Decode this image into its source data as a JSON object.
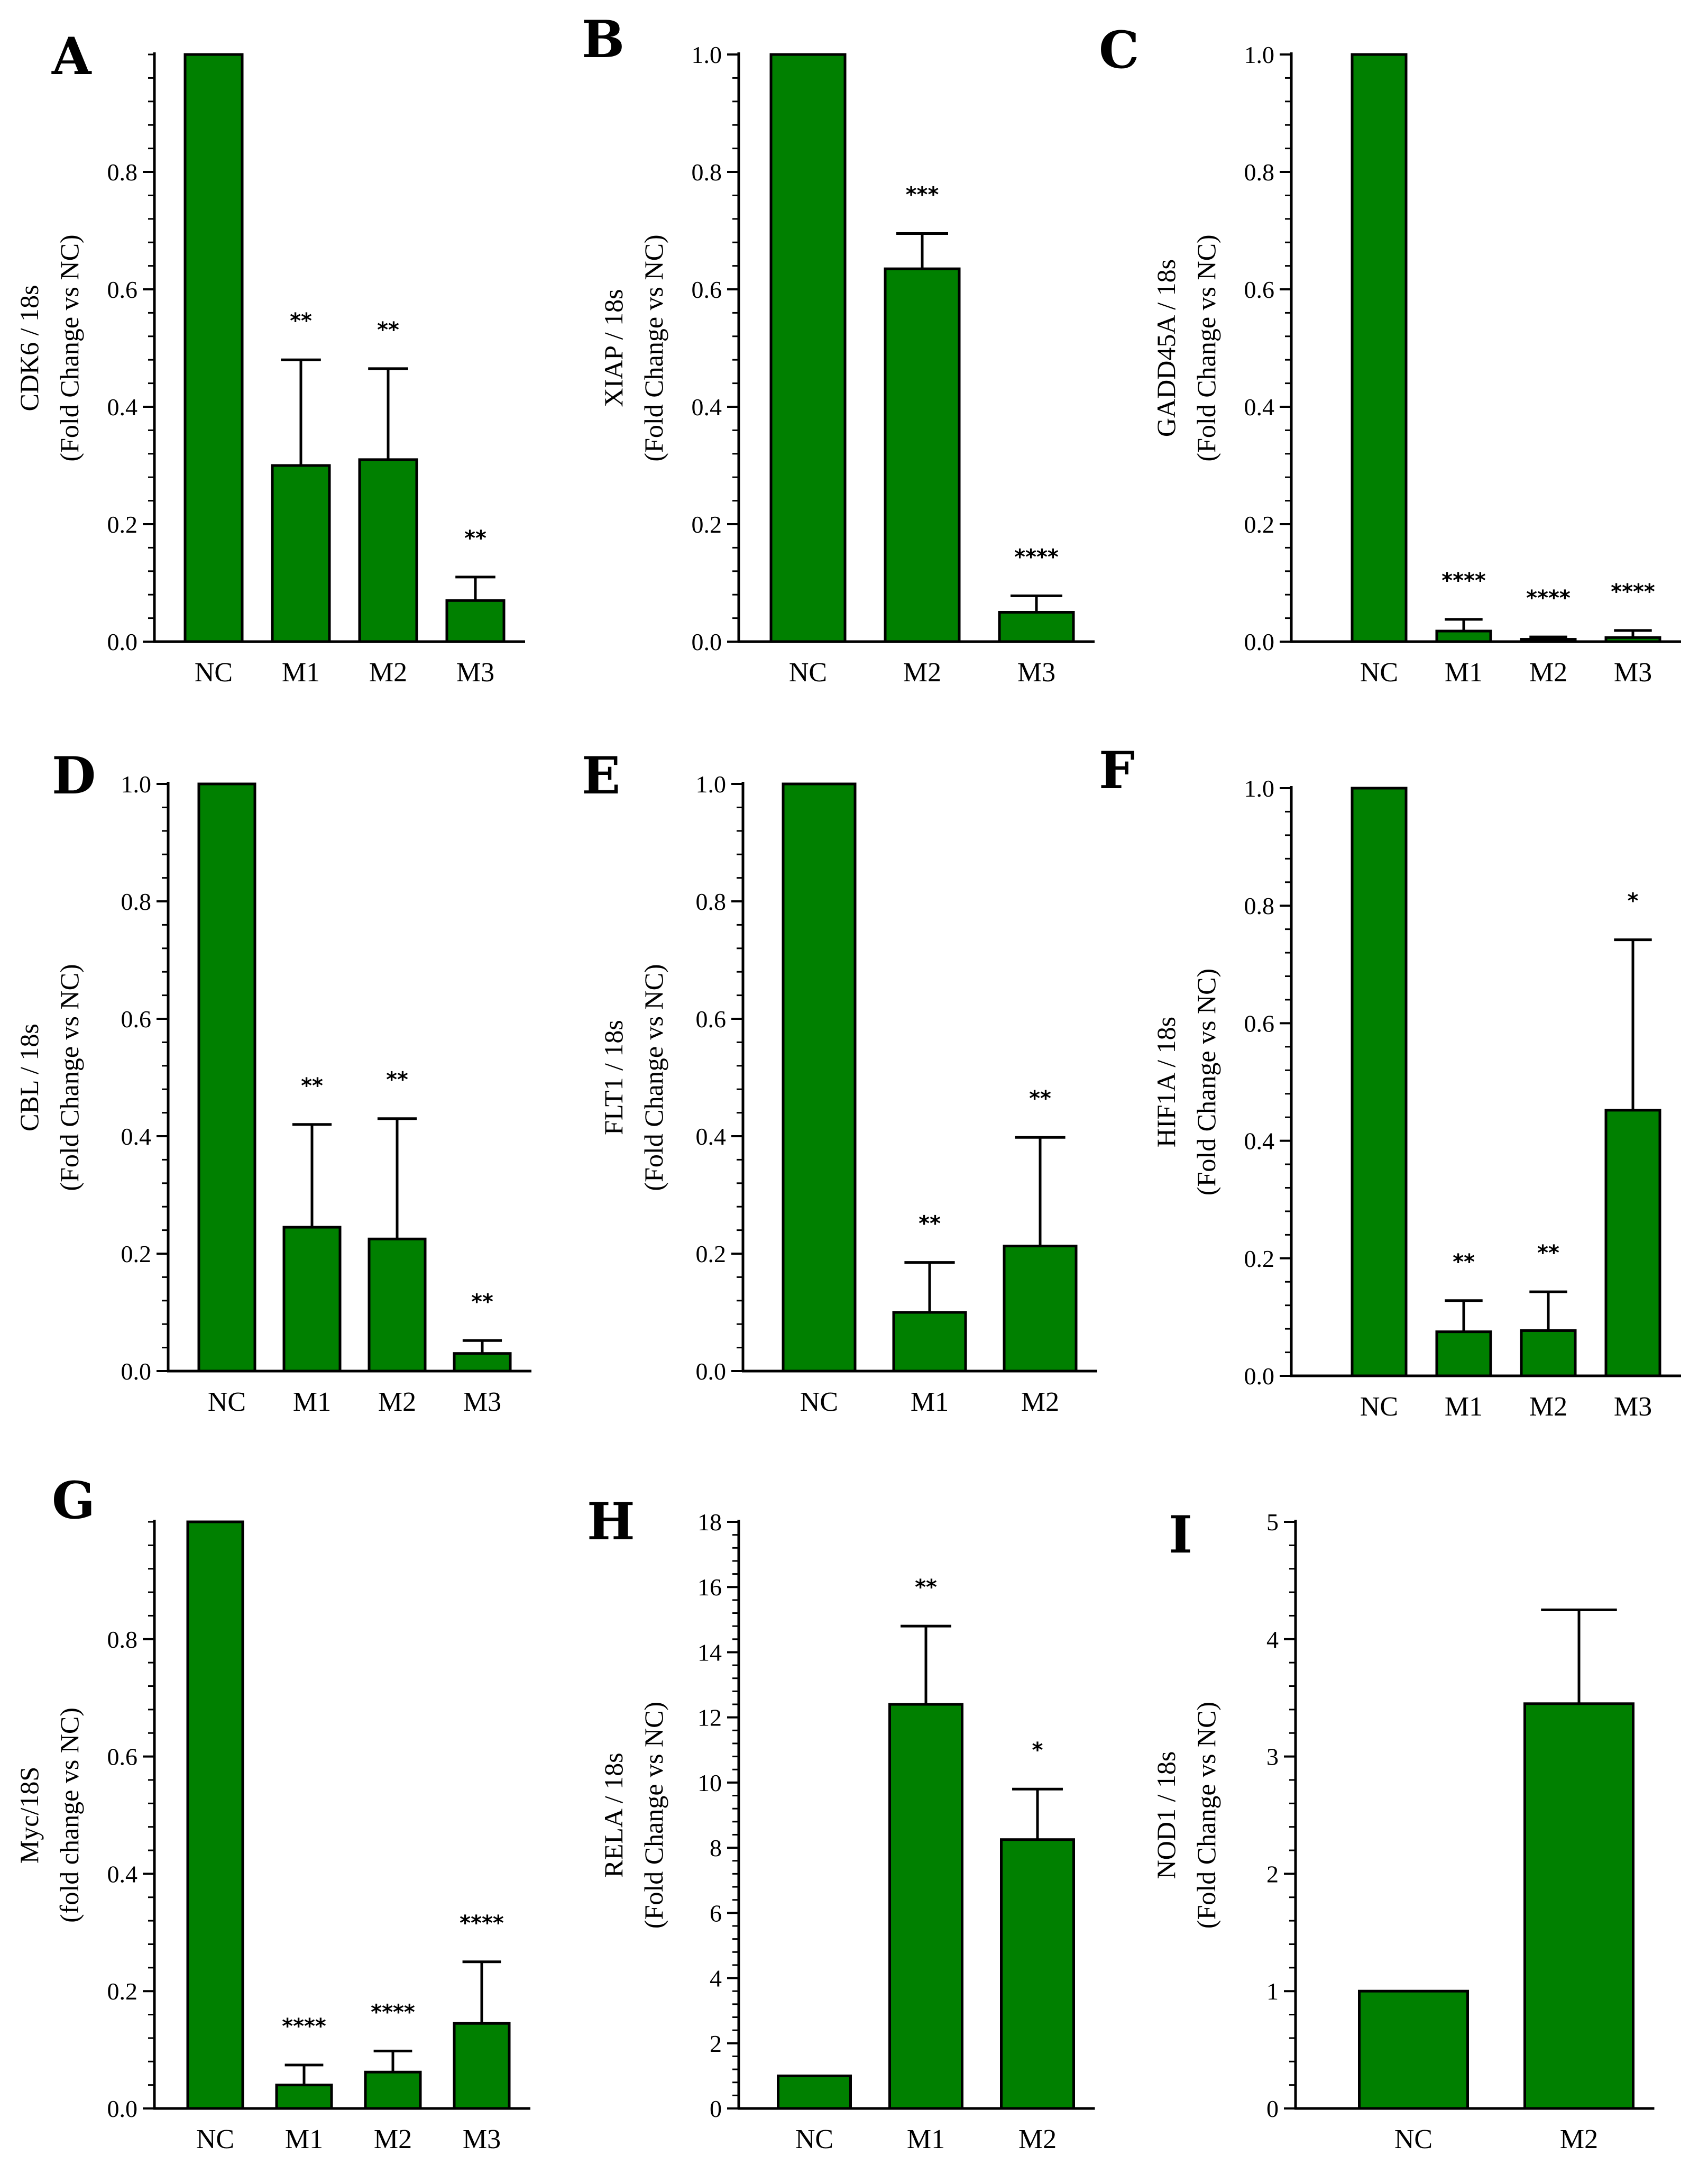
{
  "colors": {
    "bar": "#008000",
    "stroke": "#000000"
  },
  "chart_data": [
    {
      "panel": "A",
      "type": "bar",
      "ylabel": [
        "CDK6 / 18s",
        "(Fold Change vs NC)"
      ],
      "categories": [
        "NC",
        "M1",
        "M2",
        "M3"
      ],
      "values": [
        1.0,
        0.3,
        0.31,
        0.07
      ],
      "errors": [
        0,
        0.18,
        0.155,
        0.04
      ],
      "significance": [
        "",
        "**",
        "**",
        "**"
      ],
      "ylim": [
        0,
        1.0
      ],
      "yticks": [
        0.0,
        0.2,
        0.4,
        0.6,
        0.8
      ],
      "ytick_labels": [
        "0.0",
        "0.2",
        "0.4",
        "0.6",
        "0.8"
      ]
    },
    {
      "panel": "B",
      "type": "bar",
      "ylabel": [
        "XIAP / 18s",
        "(Fold Change vs NC)"
      ],
      "categories": [
        "NC",
        "M2",
        "M3"
      ],
      "values": [
        1.0,
        0.635,
        0.05
      ],
      "errors": [
        0,
        0.06,
        0.028
      ],
      "significance": [
        "",
        "***",
        "****"
      ],
      "ylim": [
        0,
        1.0
      ],
      "yticks": [
        0.0,
        0.2,
        0.4,
        0.6,
        0.8,
        1.0
      ],
      "ytick_labels": [
        "0.0",
        "0.2",
        "0.4",
        "0.6",
        "0.8",
        "1.0"
      ]
    },
    {
      "panel": "C",
      "type": "bar",
      "ylabel": [
        "GADD45A / 18s",
        "(Fold Change vs NC)"
      ],
      "categories": [
        "NC",
        "M1",
        "M2",
        "M3"
      ],
      "values": [
        1.0,
        0.018,
        0.004,
        0.007
      ],
      "errors": [
        0,
        0.02,
        0.004,
        0.012
      ],
      "significance": [
        "",
        "****",
        "****",
        "****"
      ],
      "ylim": [
        0,
        1.0
      ],
      "yticks": [
        0.0,
        0.2,
        0.4,
        0.6,
        0.8,
        1.0
      ],
      "ytick_labels": [
        "0.0",
        "0.2",
        "0.4",
        "0.6",
        "0.8",
        "1.0"
      ]
    },
    {
      "panel": "D",
      "type": "bar",
      "ylabel": [
        "CBL / 18s",
        "(Fold Change vs NC)"
      ],
      "categories": [
        "NC",
        "M1",
        "M2",
        "M3"
      ],
      "values": [
        1.0,
        0.245,
        0.225,
        0.03
      ],
      "errors": [
        0,
        0.175,
        0.205,
        0.022
      ],
      "significance": [
        "",
        "**",
        "**",
        "**"
      ],
      "ylim": [
        0,
        1.0
      ],
      "yticks": [
        0.0,
        0.2,
        0.4,
        0.6,
        0.8,
        1.0
      ],
      "ytick_labels": [
        "0.0",
        "0.2",
        "0.4",
        "0.6",
        "0.8",
        "1.0"
      ]
    },
    {
      "panel": "E",
      "type": "bar",
      "ylabel": [
        "FLT1 / 18s",
        "(Fold Change vs NC)"
      ],
      "categories": [
        "NC",
        "M1",
        "M2"
      ],
      "values": [
        1.0,
        0.1,
        0.213
      ],
      "errors": [
        0,
        0.085,
        0.185
      ],
      "significance": [
        "",
        "**",
        "**"
      ],
      "ylim": [
        0,
        1.0
      ],
      "yticks": [
        0.0,
        0.2,
        0.4,
        0.6,
        0.8,
        1.0
      ],
      "ytick_labels": [
        "0.0",
        "0.2",
        "0.4",
        "0.6",
        "0.8",
        "1.0"
      ]
    },
    {
      "panel": "F",
      "type": "bar",
      "ylabel": [
        "HIF1A / 18s",
        "(Fold Change vs NC)"
      ],
      "categories": [
        "NC",
        "M1",
        "M2",
        "M3"
      ],
      "values": [
        1.0,
        0.075,
        0.077,
        0.452
      ],
      "errors": [
        0,
        0.053,
        0.066,
        0.29
      ],
      "significance": [
        "",
        "**",
        "**",
        "*"
      ],
      "ylim": [
        0,
        1.0
      ],
      "yticks": [
        0.0,
        0.2,
        0.4,
        0.6,
        0.8,
        1.0
      ],
      "ytick_labels": [
        "0.0",
        "0.2",
        "0.4",
        "0.6",
        "0.8",
        "1.0"
      ]
    },
    {
      "panel": "G",
      "type": "bar",
      "ylabel": [
        "Myc/18S",
        "(fold change vs NC)"
      ],
      "categories": [
        "NC",
        "M1",
        "M2",
        "M3"
      ],
      "values": [
        1.0,
        0.04,
        0.062,
        0.145
      ],
      "errors": [
        0,
        0.034,
        0.036,
        0.105
      ],
      "significance": [
        "",
        "****",
        "****",
        "****"
      ],
      "ylim": [
        0,
        1.0
      ],
      "yticks": [
        0.0,
        0.2,
        0.4,
        0.6,
        0.8
      ],
      "ytick_labels": [
        "0.0",
        "0.2",
        "0.4",
        "0.6",
        "0.8"
      ]
    },
    {
      "panel": "H",
      "type": "bar",
      "ylabel": [
        "RELA / 18s",
        "(Fold Change vs NC)"
      ],
      "categories": [
        "NC",
        "M1",
        "M2"
      ],
      "values": [
        1.0,
        12.4,
        8.25
      ],
      "errors": [
        0,
        2.4,
        1.55
      ],
      "significance": [
        "",
        "**",
        "*"
      ],
      "ylim": [
        0,
        18
      ],
      "yticks": [
        0,
        2,
        4,
        6,
        8,
        10,
        12,
        14,
        16,
        18
      ],
      "ytick_labels": [
        "0",
        "2",
        "4",
        "6",
        "8",
        "10",
        "12",
        "14",
        "16",
        "18"
      ]
    },
    {
      "panel": "I",
      "type": "bar",
      "ylabel": [
        "NOD1 / 18s",
        "(Fold Change vs NC)"
      ],
      "categories": [
        "NC",
        "M2"
      ],
      "values": [
        1.0,
        3.45
      ],
      "errors": [
        0,
        0.8
      ],
      "significance": [
        "",
        ""
      ],
      "ylim": [
        0,
        5
      ],
      "yticks": [
        0,
        1,
        2,
        3,
        4,
        5
      ],
      "ytick_labels": [
        "0",
        "1",
        "2",
        "3",
        "4",
        "5"
      ]
    }
  ]
}
